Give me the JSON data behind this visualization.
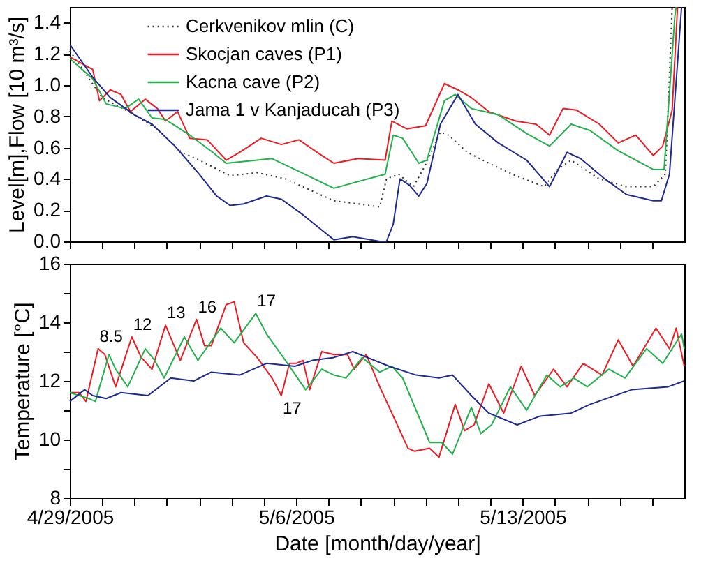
{
  "chart_data": [
    {
      "type": "line",
      "ylabel": "Level[m],Flow [10 m³/s]",
      "xlim": [
        "2005-04-29",
        "2005-05-18"
      ],
      "ylim": [
        0,
        1.5
      ],
      "xticks": [
        {
          "value": "2005-04-29",
          "label": null
        },
        {
          "value": "2005-04-30",
          "label": null
        },
        {
          "value": "2005-05-01",
          "label": null
        },
        {
          "value": "2005-05-02",
          "label": null
        },
        {
          "value": "2005-05-03",
          "label": null
        },
        {
          "value": "2005-05-04",
          "label": null
        },
        {
          "value": "2005-05-05",
          "label": null
        },
        {
          "value": "2005-05-06",
          "label": null
        },
        {
          "value": "2005-05-07",
          "label": null
        },
        {
          "value": "2005-05-08",
          "label": null
        },
        {
          "value": "2005-05-09",
          "label": null
        },
        {
          "value": "2005-05-10",
          "label": null
        },
        {
          "value": "2005-05-11",
          "label": null
        },
        {
          "value": "2005-05-12",
          "label": null
        },
        {
          "value": "2005-05-13",
          "label": null
        },
        {
          "value": "2005-05-14",
          "label": null
        },
        {
          "value": "2005-05-15",
          "label": null
        },
        {
          "value": "2005-05-16",
          "label": null
        },
        {
          "value": "2005-05-17",
          "label": null
        }
      ],
      "yticks": [
        {
          "value": 0,
          "label": "0.0"
        },
        0.2,
        0.4,
        0.6,
        0.8,
        {
          "value": 1,
          "label": "1.0"
        },
        1.2,
        1.4
      ],
      "tick_labels": "y",
      "legend": "top",
      "line_style": "solid",
      "series": [
        {
          "name": "Cerkvenikov mlin (C)",
          "color": "#333333",
          "line_style": "dotted",
          "x": [
            "2005-04-29T00:00",
            "2005-04-30T00:00",
            "2005-05-01T00:00",
            "2005-05-01T17:00",
            "2005-05-02T06:00",
            "2005-05-02T11:00",
            "2005-05-03T00:00",
            "2005-05-03T23:00",
            "2005-05-04T19:00",
            "2005-05-05T16:00",
            "2005-05-07T04:00",
            "2005-05-07T22:00",
            "2005-05-08T14:00",
            "2005-05-08T19:00",
            "2005-05-09T04:00",
            "2005-05-09T15:00",
            "2005-05-10T00:00",
            "2005-05-10T11:00",
            "2005-05-10T17:00",
            "2005-05-11T07:00",
            "2005-05-11T23:00",
            "2005-05-12T19:00",
            "2005-05-13T16:00",
            "2005-05-14T02:00",
            "2005-05-14T12:00",
            "2005-05-15T09:00",
            "2005-05-16T05:00",
            "2005-05-17T01:00",
            "2005-05-17T10:00",
            "2005-05-17T15:00"
          ],
          "values": [
            1.22,
            0.92,
            0.81,
            0.72,
            0.61,
            0.57,
            0.52,
            0.42,
            0.44,
            0.4,
            0.26,
            0.24,
            0.22,
            0.4,
            0.43,
            0.35,
            0.49,
            0.7,
            0.68,
            0.57,
            0.5,
            0.42,
            0.35,
            0.46,
            0.52,
            0.4,
            0.35,
            0.35,
            0.43,
            1.5
          ]
        },
        {
          "name": "Skocjan caves (P1)",
          "color": "#ed1c24",
          "x": [
            "2005-04-29T00:00",
            "2005-04-29T17:00",
            "2005-04-29T22:00",
            "2005-04-30T06:00",
            "2005-04-30T14:00",
            "2005-04-30T21:00",
            "2005-05-01T08:00",
            "2005-05-01T17:00",
            "2005-05-01T23:00",
            "2005-05-02T08:00",
            "2005-05-02T17:00",
            "2005-05-03T06:00",
            "2005-05-03T20:00",
            "2005-05-04T06:00",
            "2005-05-04T22:00",
            "2005-05-05T13:00",
            "2005-05-06T02:00",
            "2005-05-06T19:00",
            "2005-05-07T04:00",
            "2005-05-07T22:00",
            "2005-05-08T18:00",
            "2005-05-08T23:00",
            "2005-05-09T10:00",
            "2005-05-10T00:00",
            "2005-05-10T14:00",
            "2005-05-11T00:00",
            "2005-05-11T10:00",
            "2005-05-11T23:00",
            "2005-05-12T19:00",
            "2005-05-13T10:00",
            "2005-05-13T20:00",
            "2005-05-14T06:00",
            "2005-05-14T16:00",
            "2005-05-15T09:00",
            "2005-05-15T23:00",
            "2005-05-16T12:00",
            "2005-05-17T01:00",
            "2005-05-17T08:00",
            "2005-05-17T15:00",
            "2005-05-17T19:00"
          ],
          "values": [
            1.18,
            1.1,
            0.9,
            0.97,
            0.94,
            0.83,
            0.91,
            0.85,
            0.77,
            0.83,
            0.66,
            0.65,
            0.52,
            0.57,
            0.66,
            0.62,
            0.65,
            0.55,
            0.5,
            0.53,
            0.52,
            0.77,
            0.72,
            0.74,
            1.01,
            0.97,
            0.92,
            0.83,
            0.77,
            0.75,
            0.68,
            0.85,
            0.84,
            0.75,
            0.63,
            0.68,
            0.55,
            0.61,
            0.84,
            1.5
          ]
        },
        {
          "name": "Kacna cave (P2)",
          "color": "#22b14c",
          "x": [
            "2005-04-29T00:00",
            "2005-04-29T17:00",
            "2005-04-30T03:00",
            "2005-04-30T17:00",
            "2005-05-01T03:00",
            "2005-05-01T13:00",
            "2005-05-01T23:00",
            "2005-05-02T17:00",
            "2005-05-03T10:00",
            "2005-05-03T20:00",
            "2005-05-04T19:00",
            "2005-05-05T06:00",
            "2005-05-05T23:00",
            "2005-05-07T04:00",
            "2005-05-08T01:00",
            "2005-05-08T18:00",
            "2005-05-09T00:00",
            "2005-05-09T07:00",
            "2005-05-09T19:00",
            "2005-05-10T01:00",
            "2005-05-10T14:00",
            "2005-05-10T22:00",
            "2005-05-11T10:00",
            "2005-05-12T06:00",
            "2005-05-13T03:00",
            "2005-05-13T20:00",
            "2005-05-14T12:00",
            "2005-05-15T02:00",
            "2005-05-15T23:00",
            "2005-05-17T01:00",
            "2005-05-17T09:00",
            "2005-05-17T17:00",
            "2005-05-17T18:00"
          ],
          "values": [
            1.17,
            1.04,
            0.88,
            0.85,
            0.91,
            0.79,
            0.78,
            0.68,
            0.57,
            0.5,
            0.52,
            0.53,
            0.46,
            0.34,
            0.39,
            0.43,
            0.68,
            0.66,
            0.5,
            0.52,
            0.9,
            0.94,
            0.85,
            0.81,
            0.69,
            0.61,
            0.75,
            0.71,
            0.58,
            0.46,
            0.46,
            1.44,
            1.5
          ]
        },
        {
          "name": "Jama 1 v Kanjaducah (P3)",
          "color": "#1f2a8f",
          "x": [
            "2005-04-29T00:00",
            "2005-04-29T17:00",
            "2005-04-30T06:00",
            "2005-05-01T00:00",
            "2005-05-01T13:00",
            "2005-05-02T06:00",
            "2005-05-03T00:00",
            "2005-05-03T13:00",
            "2005-05-03T23:00",
            "2005-05-04T09:00",
            "2005-05-05T02:00",
            "2005-05-05T13:00",
            "2005-05-06T05:00",
            "2005-05-07T04:00",
            "2005-05-07T18:00",
            "2005-05-08T14:00",
            "2005-05-08T19:00",
            "2005-05-09T00:00",
            "2005-05-09T05:00",
            "2005-05-09T12:00",
            "2005-05-09T19:00",
            "2005-05-10T01:00",
            "2005-05-10T11:00",
            "2005-05-11T00:00",
            "2005-05-11T13:00",
            "2005-05-12T06:00",
            "2005-05-13T03:00",
            "2005-05-13T20:00",
            "2005-05-14T09:00",
            "2005-05-14T19:00",
            "2005-05-15T13:00",
            "2005-05-16T05:00",
            "2005-05-17T01:00",
            "2005-05-17T07:00",
            "2005-05-17T13:00",
            "2005-05-17T22:00"
          ],
          "values": [
            1.26,
            1.05,
            0.92,
            0.81,
            0.75,
            0.61,
            0.43,
            0.29,
            0.23,
            0.24,
            0.29,
            0.27,
            0.17,
            0.01,
            0.03,
            0,
            0,
            0.11,
            0.4,
            0.36,
            0.29,
            0.37,
            0.75,
            0.94,
            0.75,
            0.63,
            0.52,
            0.35,
            0.57,
            0.53,
            0.4,
            0.3,
            0.26,
            0.26,
            0.43,
            1.5
          ]
        }
      ]
    },
    {
      "type": "line",
      "ylabel": "Temperature [°C]",
      "xlabel": "Date [month/day/year]",
      "xlim": [
        "2005-04-29",
        "2005-05-18"
      ],
      "ylim": [
        8,
        16
      ],
      "xticks": [
        {
          "value": "2005-04-29",
          "label": "4/29/2005"
        },
        {
          "value": "2005-04-30",
          "label": null
        },
        {
          "value": "2005-05-01",
          "label": null
        },
        {
          "value": "2005-05-02",
          "label": null
        },
        {
          "value": "2005-05-03",
          "label": null
        },
        {
          "value": "2005-05-04",
          "label": null
        },
        {
          "value": "2005-05-05",
          "label": null
        },
        {
          "value": "2005-05-06",
          "label": "5/6/2005"
        },
        {
          "value": "2005-05-07",
          "label": null
        },
        {
          "value": "2005-05-08",
          "label": null
        },
        {
          "value": "2005-05-09",
          "label": null
        },
        {
          "value": "2005-05-10",
          "label": null
        },
        {
          "value": "2005-05-11",
          "label": null
        },
        {
          "value": "2005-05-12",
          "label": null
        },
        {
          "value": "2005-05-13",
          "label": "5/13/2005"
        },
        {
          "value": "2005-05-14",
          "label": null
        },
        {
          "value": "2005-05-15",
          "label": null
        },
        {
          "value": "2005-05-16",
          "label": null
        },
        {
          "value": "2005-05-17",
          "label": null
        }
      ],
      "yticks": [
        8,
        {
          "value": 9,
          "label": null
        },
        10,
        {
          "value": 11,
          "label": null
        },
        12,
        {
          "value": 13,
          "label": null
        },
        14,
        {
          "value": 15,
          "label": null
        },
        16
      ],
      "line_style": "solid",
      "annotations": [
        {
          "text": "8.5",
          "x": "2005-04-29T21:00",
          "y": 13.1
        },
        {
          "text": "12",
          "x": "2005-04-30T22:00",
          "y": 13.5
        },
        {
          "text": "13",
          "x": "2005-05-01T23:00",
          "y": 13.9
        },
        {
          "text": "16",
          "x": "2005-05-02T22:00",
          "y": 14.1
        },
        {
          "text": "17",
          "x": "2005-05-04T18:00",
          "y": 14.3
        },
        {
          "text": "17",
          "x": "2005-05-05T13:00",
          "y": 11.5
        }
      ],
      "series": [
        {
          "color": "#ed1c24",
          "x": [
            "2005-04-29T00:00",
            "2005-04-29T07:00",
            "2005-04-29T12:00",
            "2005-04-29T21:00",
            "2005-04-30T02:00",
            "2005-04-30T10:00",
            "2005-04-30T22:00",
            "2005-05-01T05:00",
            "2005-05-01T13:00",
            "2005-05-01T23:00",
            "2005-05-02T10:00",
            "2005-05-02T22:00",
            "2005-05-03T04:00",
            "2005-05-03T09:00",
            "2005-05-03T20:00",
            "2005-05-04T02:00",
            "2005-05-04T09:00",
            "2005-05-04T19:00",
            "2005-05-05T06:00",
            "2005-05-05T13:00",
            "2005-05-05T19:00",
            "2005-05-06T00:00",
            "2005-05-06T05:00",
            "2005-05-06T10:00",
            "2005-05-06T19:00",
            "2005-05-07T04:00",
            "2005-05-07T14:00",
            "2005-05-07T19:00",
            "2005-05-08T04:00",
            "2005-05-08T14:00",
            "2005-05-09T00:00",
            "2005-05-09T11:00",
            "2005-05-09T16:00",
            "2005-05-10T03:00",
            "2005-05-10T10:00",
            "2005-05-10T22:00",
            "2005-05-11T05:00",
            "2005-05-11T12:00",
            "2005-05-11T23:00",
            "2005-05-12T10:00",
            "2005-05-12T23:00",
            "2005-05-13T09:00",
            "2005-05-13T23:00",
            "2005-05-14T09:00",
            "2005-05-14T21:00",
            "2005-05-15T11:00",
            "2005-05-15T23:00",
            "2005-05-16T10:00",
            "2005-05-17T03:00",
            "2005-05-17T13:00",
            "2005-05-17T18:00",
            "2005-05-18T00:00"
          ],
          "values": [
            11.6,
            11.6,
            11.3,
            13.1,
            12.9,
            11.8,
            13.5,
            12.8,
            12.4,
            13.9,
            12.7,
            14.1,
            13.2,
            13.2,
            14.6,
            14.7,
            13.3,
            12.8,
            12.1,
            11.5,
            12.6,
            12.6,
            12.7,
            11.7,
            13.0,
            12.9,
            12.9,
            12.4,
            12.9,
            11.8,
            10.8,
            9.7,
            9.6,
            9.7,
            9.4,
            11.2,
            10.3,
            10.5,
            11.9,
            10.9,
            12.5,
            11.5,
            12.4,
            11.8,
            12.6,
            12.2,
            13.4,
            12.5,
            13.8,
            13.1,
            13.8,
            12.5
          ]
        },
        {
          "color": "#22b14c",
          "x": [
            "2005-04-29T00:00",
            "2005-04-29T14:00",
            "2005-04-29T19:00",
            "2005-04-30T05:00",
            "2005-04-30T10:00",
            "2005-04-30T19:00",
            "2005-05-01T08:00",
            "2005-05-01T15:00",
            "2005-05-01T22:00",
            "2005-05-02T13:00",
            "2005-05-02T23:00",
            "2005-05-03T16:00",
            "2005-05-04T02:00",
            "2005-05-04T18:00",
            "2005-05-05T02:00",
            "2005-05-05T16:00",
            "2005-05-06T07:00",
            "2005-05-06T19:00",
            "2005-05-07T04:00",
            "2005-05-07T13:00",
            "2005-05-08T01:00",
            "2005-05-08T14:00",
            "2005-05-08T23:00",
            "2005-05-09T07:00",
            "2005-05-09T17:00",
            "2005-05-10T03:00",
            "2005-05-10T12:00",
            "2005-05-10T20:00",
            "2005-05-11T10:00",
            "2005-05-11T17:00",
            "2005-05-12T01:00",
            "2005-05-12T15:00",
            "2005-05-13T03:00",
            "2005-05-13T18:00",
            "2005-05-14T04:00",
            "2005-05-14T14:00",
            "2005-05-15T00:00",
            "2005-05-15T16:00",
            "2005-05-16T04:00",
            "2005-05-16T20:00",
            "2005-05-17T08:00",
            "2005-05-17T22:00",
            "2005-05-18T00:00"
          ],
          "values": [
            11.6,
            11.4,
            11.3,
            12.9,
            12.4,
            11.8,
            13.1,
            12.7,
            12.1,
            13.5,
            12.7,
            13.8,
            13.3,
            14.3,
            13.6,
            12.7,
            11.7,
            12.4,
            12.2,
            12.1,
            12.8,
            12.3,
            12.5,
            12.1,
            11.0,
            9.9,
            9.9,
            9.5,
            11.1,
            10.2,
            10.5,
            11.8,
            11.0,
            12.2,
            11.8,
            12.1,
            11.8,
            12.4,
            12.1,
            13.1,
            12.6,
            13.6,
            13.1
          ]
        },
        {
          "color": "#1f2a8f",
          "x": [
            "2005-04-29T00:00",
            "2005-04-29T11:00",
            "2005-04-29T17:00",
            "2005-04-30T03:00",
            "2005-04-30T14:00",
            "2005-05-01T10:00",
            "2005-05-02T03:00",
            "2005-05-02T20:00",
            "2005-05-03T09:00",
            "2005-05-04T06:00",
            "2005-05-05T02:00",
            "2005-05-05T23:00",
            "2005-05-06T12:00",
            "2005-05-07T04:00",
            "2005-05-07T18:00",
            "2005-05-08T21:00",
            "2005-05-09T17:00",
            "2005-05-10T10:00",
            "2005-05-10T20:00",
            "2005-05-11T10:00",
            "2005-05-11T23:00",
            "2005-05-12T20:00",
            "2005-05-13T13:00",
            "2005-05-14T12:00",
            "2005-05-15T02:00",
            "2005-05-16T09:00",
            "2005-05-17T12:00",
            "2005-05-18T00:00"
          ],
          "values": [
            11.3,
            11.7,
            11.5,
            11.4,
            11.6,
            11.5,
            12.1,
            12.0,
            12.3,
            12.2,
            12.6,
            12.5,
            12.7,
            12.8,
            13.0,
            12.5,
            12.2,
            12.1,
            12.2,
            11.5,
            10.9,
            10.5,
            10.8,
            10.9,
            11.2,
            11.7,
            11.8,
            12.0
          ]
        }
      ]
    }
  ]
}
